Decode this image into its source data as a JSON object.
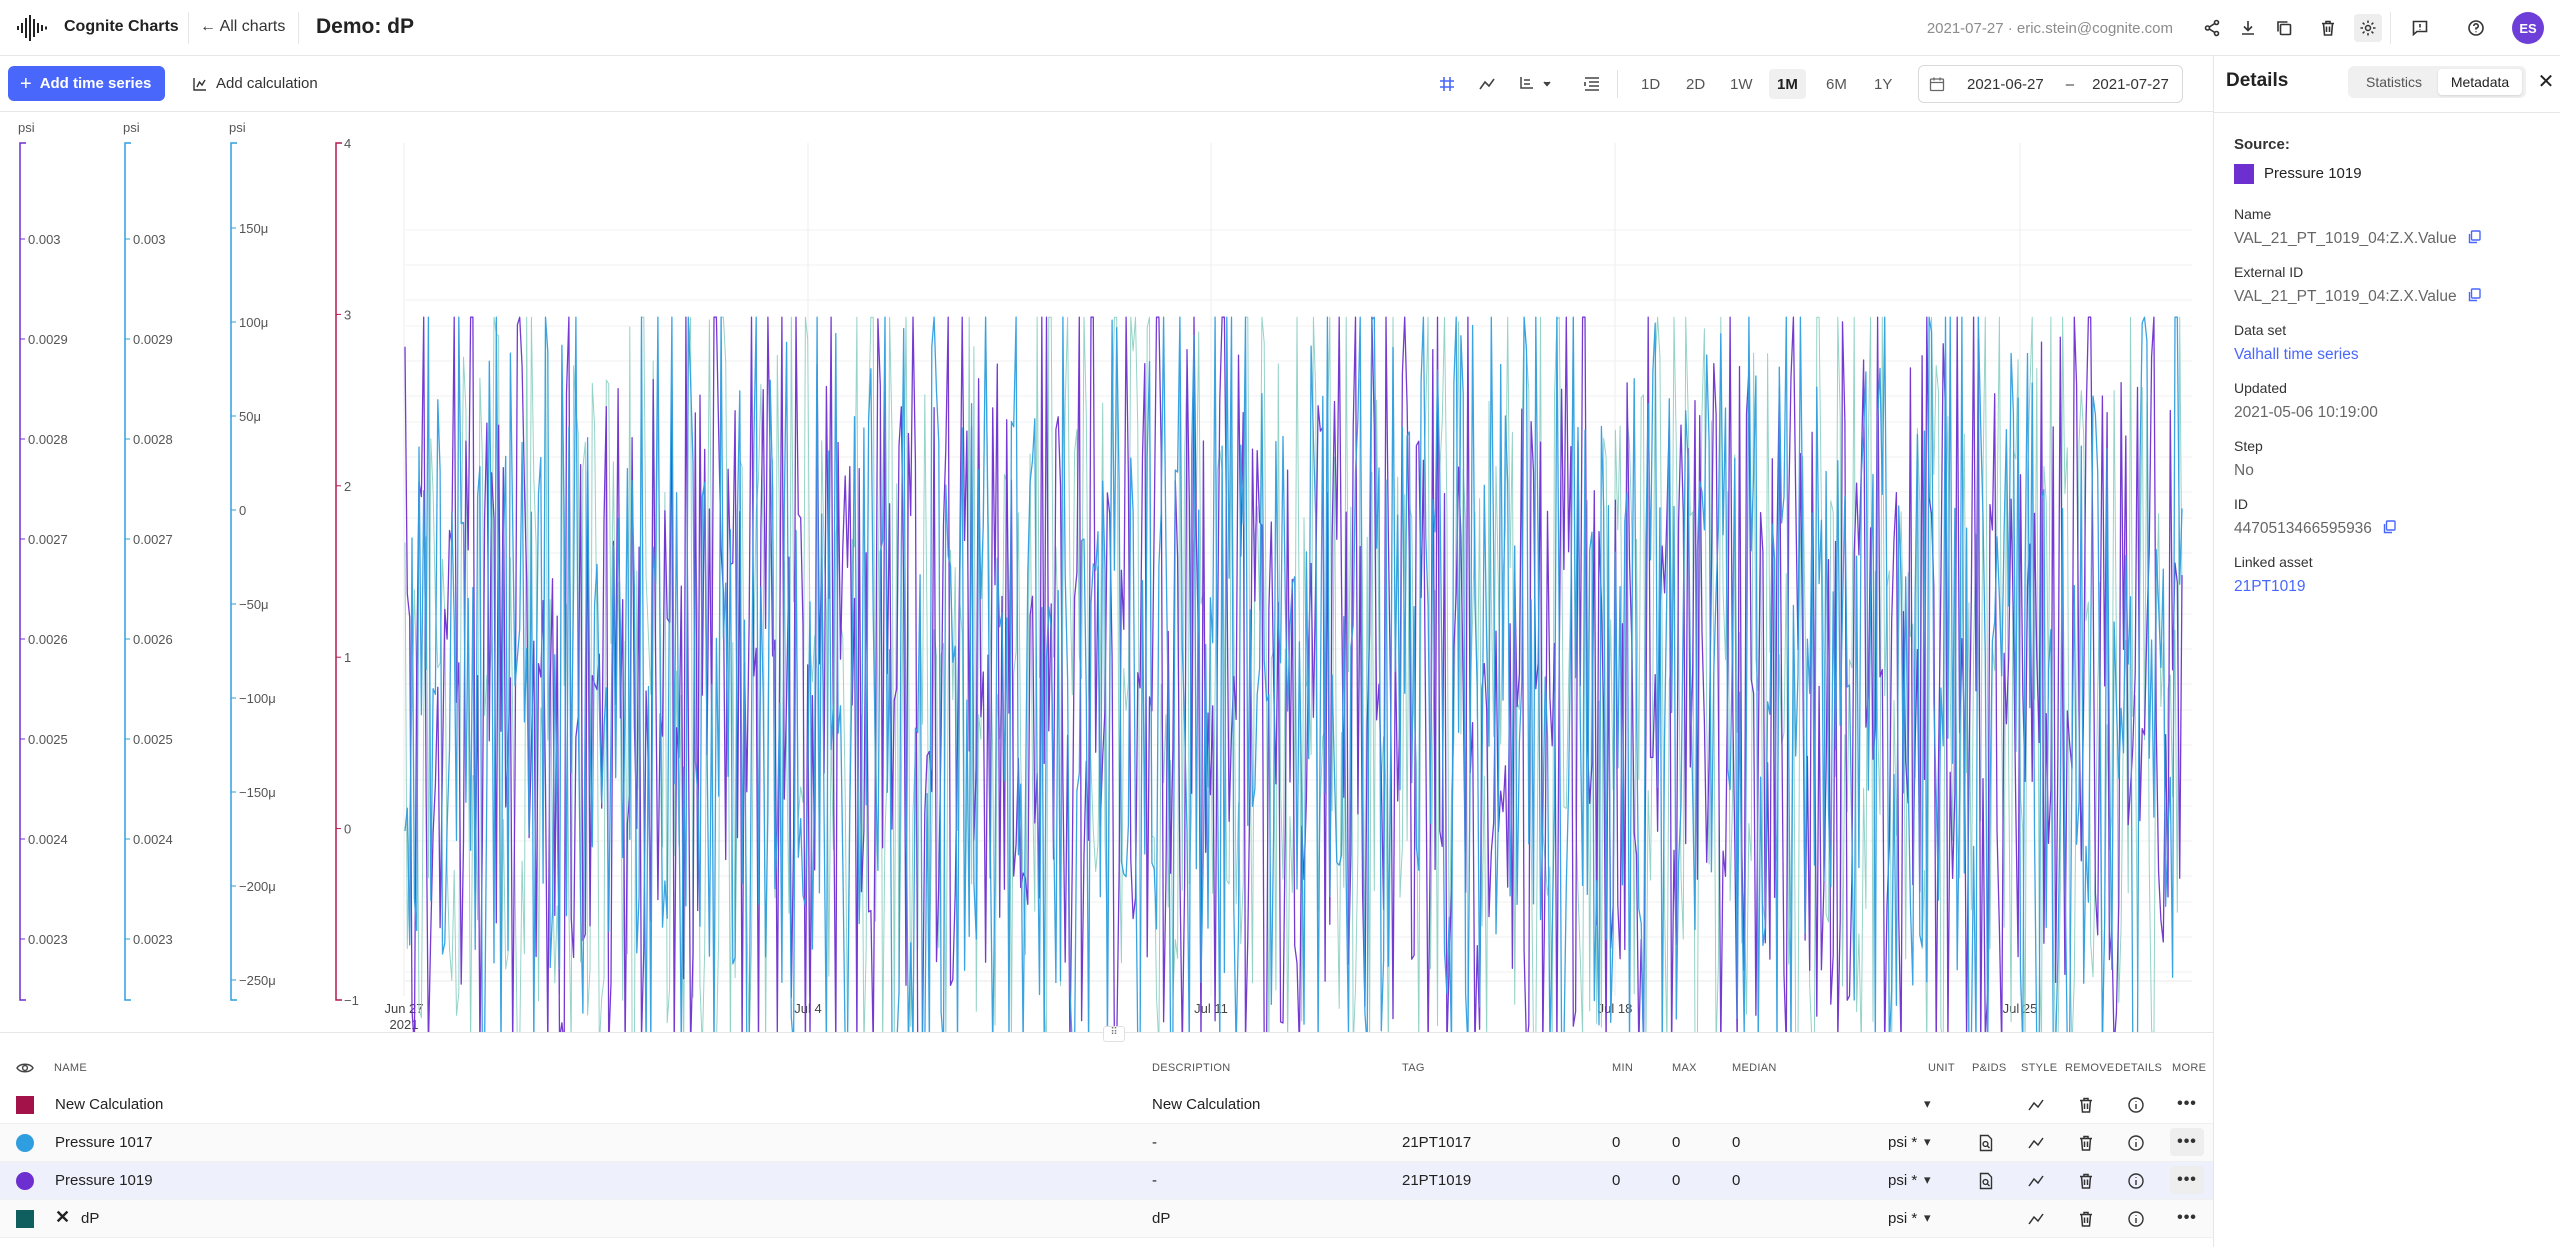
{
  "app": {
    "brand": "Cognite Charts",
    "back_label": "← All charts",
    "chart_title": "Demo: dP",
    "meta_info": "2021-07-27 · eric.stein@cognite.com",
    "avatar_initials": "ES",
    "accent_color": "#4a67fb"
  },
  "toolbar": {
    "add_time_series": "Add time series",
    "add_calculation": "Add calculation",
    "ranges": [
      "1D",
      "2D",
      "1W",
      "1M",
      "6M",
      "1Y"
    ],
    "active_range": "1M",
    "date_from": "2021-06-27",
    "date_dash": "–",
    "date_to": "2021-07-27"
  },
  "y_axes": [
    {
      "unit": "psi",
      "color": "#6e2fd0",
      "ticks": [
        "0.003",
        "0.0029",
        "0.0028",
        "0.0027",
        "0.0026",
        "0.0025",
        "0.0024",
        "0.0023"
      ]
    },
    {
      "unit": "psi",
      "color": "#2f9ee0",
      "ticks": [
        "0.003",
        "0.0029",
        "0.0028",
        "0.0027",
        "0.0026",
        "0.0025",
        "0.0024",
        "0.0023"
      ]
    },
    {
      "unit": "psi",
      "color": "#2f9ee0",
      "ticks": [
        "150μ",
        "100μ",
        "50μ",
        "0",
        "−50μ",
        "−100μ",
        "−150μ",
        "−200μ",
        "−250μ"
      ]
    },
    {
      "unit": "",
      "color": "#b51a4f",
      "ticks": [
        "4",
        "3",
        "2",
        "1",
        "0",
        "−1"
      ]
    }
  ],
  "x_axis": {
    "ticks": [
      "Jun 27",
      "Jul 4",
      "Jul 11",
      "Jul 18",
      "Jul 25"
    ],
    "year_label": "2021"
  },
  "chart_data": {
    "type": "line",
    "x_range": [
      "2021-06-27",
      "2021-07-27"
    ],
    "series": [
      {
        "name": "Pressure 1017",
        "color": "#2f9ee0"
      },
      {
        "name": "Pressure 1019",
        "color": "#6e2fd0"
      }
    ],
    "grid": true
  },
  "table": {
    "headers": {
      "name": "NAME",
      "description": "DESCRIPTION",
      "tag": "TAG",
      "min": "MIN",
      "max": "MAX",
      "median": "MEDIAN",
      "unit": "UNIT",
      "pids": "P&IDS",
      "style": "STYLE",
      "remove": "REMOVE",
      "details": "DETAILS",
      "more": "MORE"
    },
    "rows": [
      {
        "name": "New Calculation",
        "description": "New Calculation",
        "tag": "",
        "min": "",
        "max": "",
        "median": "",
        "unit": "",
        "color": "#a3134a",
        "shape": "square"
      },
      {
        "name": "Pressure 1017",
        "description": "-",
        "tag": "21PT1017",
        "min": "0",
        "max": "0",
        "median": "0",
        "unit": "psi *",
        "color": "#2f9ee0",
        "shape": "round"
      },
      {
        "name": "Pressure 1019",
        "description": "-",
        "tag": "21PT1019",
        "min": "0",
        "max": "0",
        "median": "0",
        "unit": "psi *",
        "color": "#6e2fd0",
        "shape": "round"
      },
      {
        "name": "dP",
        "description": "dP",
        "tag": "",
        "min": "",
        "max": "",
        "median": "",
        "unit": "psi *",
        "color": "#0f5f5f",
        "shape": "square",
        "error": "✕"
      }
    ]
  },
  "details": {
    "title": "Details",
    "tab_statistics": "Statistics",
    "tab_metadata": "Metadata",
    "close": "✕",
    "source_label": "Source:",
    "source_name": "Pressure 1019",
    "source_color": "#6e2fd0",
    "name_label": "Name",
    "name_value": "VAL_21_PT_1019_04:Z.X.Value",
    "external_id_label": "External ID",
    "external_id_value": "VAL_21_PT_1019_04:Z.X.Value",
    "data_set_label": "Data set",
    "data_set_value": "Valhall time series",
    "updated_label": "Updated",
    "updated_value": "2021-05-06 10:19:00",
    "step_label": "Step",
    "step_value": "No",
    "id_label": "ID",
    "id_value": "4470513466595936",
    "linked_asset_label": "Linked asset",
    "linked_asset_value": "21PT1019"
  }
}
